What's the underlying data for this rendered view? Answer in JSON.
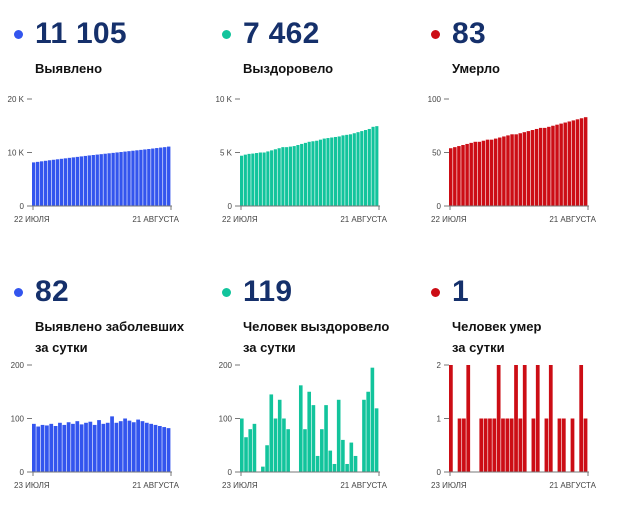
{
  "colors": {
    "blue": "#3355ee",
    "teal": "#12c49c",
    "red": "#cc0d15",
    "number": "#15306b"
  },
  "panels": [
    {
      "value": "11 105",
      "label_lines": [
        "Выявлено"
      ],
      "color": "#3355ee",
      "icon": "blue-dot-icon"
    },
    {
      "value": "7 462",
      "label_lines": [
        "Выздоровело"
      ],
      "color": "#12c49c",
      "icon": "teal-dot-icon"
    },
    {
      "value": "83",
      "label_lines": [
        "Умерло"
      ],
      "color": "#cc0d15",
      "icon": "red-dot-icon"
    },
    {
      "value": "82",
      "label_lines": [
        "Выявлено заболевших",
        "за сутки"
      ],
      "color": "#3355ee",
      "icon": "blue-dot-icon"
    },
    {
      "value": "119",
      "label_lines": [
        "Человек выздоровело",
        "за сутки"
      ],
      "color": "#12c49c",
      "icon": "teal-dot-icon"
    },
    {
      "value": "1",
      "label_lines": [
        "Человек умер",
        "за сутки"
      ],
      "color": "#cc0d15",
      "icon": "red-dot-icon"
    }
  ],
  "chart_data": [
    {
      "type": "bar",
      "x_start": "22 ИЮЛЯ",
      "x_end": "21 АВГУСТА",
      "ylim": [
        0,
        20000
      ],
      "yticks": [
        0,
        10000,
        20000
      ],
      "ytick_labels": [
        "0",
        "10 K",
        "20 K"
      ],
      "grid": false,
      "values": [
        8150,
        8250,
        8350,
        8450,
        8550,
        8640,
        8730,
        8820,
        8910,
        9000,
        9090,
        9180,
        9270,
        9360,
        9450,
        9530,
        9610,
        9690,
        9770,
        9850,
        9930,
        10010,
        10090,
        10170,
        10250,
        10330,
        10410,
        10490,
        10570,
        10650,
        10740,
        10830,
        10920,
        11000,
        11105
      ]
    },
    {
      "type": "bar",
      "x_start": "22 ИЮЛЯ",
      "x_end": "21 АВГУСТА",
      "ylim": [
        0,
        10000
      ],
      "yticks": [
        0,
        5000,
        10000
      ],
      "ytick_labels": [
        "0",
        "5 K",
        "10 K"
      ],
      "grid": false,
      "values": [
        4700,
        4800,
        4870,
        4900,
        4950,
        5000,
        5000,
        5100,
        5200,
        5300,
        5400,
        5500,
        5500,
        5550,
        5600,
        5700,
        5800,
        5900,
        6000,
        6050,
        6100,
        6200,
        6300,
        6350,
        6400,
        6450,
        6500,
        6600,
        6650,
        6700,
        6800,
        6900,
        7000,
        7100,
        7200,
        7400,
        7462
      ]
    },
    {
      "type": "bar",
      "x_start": "22 ИЮЛЯ",
      "x_end": "21 АВГУСТА",
      "ylim": [
        0,
        100
      ],
      "yticks": [
        0,
        50,
        100
      ],
      "ytick_labels": [
        "0",
        "50",
        "100"
      ],
      "grid": false,
      "values": [
        54,
        55,
        56,
        57,
        58,
        59,
        60,
        60,
        61,
        62,
        62,
        63,
        64,
        65,
        66,
        67,
        67,
        68,
        69,
        70,
        71,
        72,
        73,
        73,
        74,
        75,
        76,
        77,
        78,
        79,
        80,
        81,
        82,
        83
      ]
    },
    {
      "type": "bar",
      "x_start": "23 ИЮЛЯ",
      "x_end": "21 АВГУСТА",
      "ylim": [
        0,
        200
      ],
      "yticks": [
        0,
        100,
        200
      ],
      "ytick_labels": [
        "0",
        "100",
        "200"
      ],
      "grid": false,
      "values": [
        90,
        85,
        88,
        87,
        90,
        86,
        92,
        88,
        93,
        90,
        95,
        89,
        92,
        94,
        88,
        97,
        90,
        92,
        104,
        92,
        95,
        100,
        96,
        93,
        98,
        95,
        92,
        90,
        88,
        86,
        84,
        82
      ]
    },
    {
      "type": "bar",
      "x_start": "23 ИЮЛЯ",
      "x_end": "21 АВГУСТА",
      "ylim": [
        0,
        200
      ],
      "yticks": [
        0,
        100,
        200
      ],
      "ytick_labels": [
        "0",
        "100",
        "200"
      ],
      "grid": false,
      "values": [
        100,
        65,
        80,
        90,
        0,
        10,
        50,
        145,
        100,
        135,
        100,
        80,
        0,
        0,
        162,
        80,
        150,
        125,
        30,
        80,
        125,
        40,
        15,
        135,
        60,
        15,
        55,
        30,
        0,
        135,
        150,
        195,
        119
      ]
    },
    {
      "type": "bar",
      "x_start": "23 ИЮЛЯ",
      "x_end": "21 АВГУСТА",
      "ylim": [
        0,
        2
      ],
      "yticks": [
        0,
        1,
        2
      ],
      "ytick_labels": [
        "0",
        "1",
        "2"
      ],
      "grid": false,
      "values": [
        2,
        0,
        1,
        1,
        2,
        0,
        0,
        1,
        1,
        1,
        1,
        2,
        1,
        1,
        1,
        2,
        1,
        2,
        0,
        1,
        2,
        0,
        1,
        2,
        0,
        1,
        1,
        0,
        1,
        0,
        2,
        1
      ]
    }
  ]
}
